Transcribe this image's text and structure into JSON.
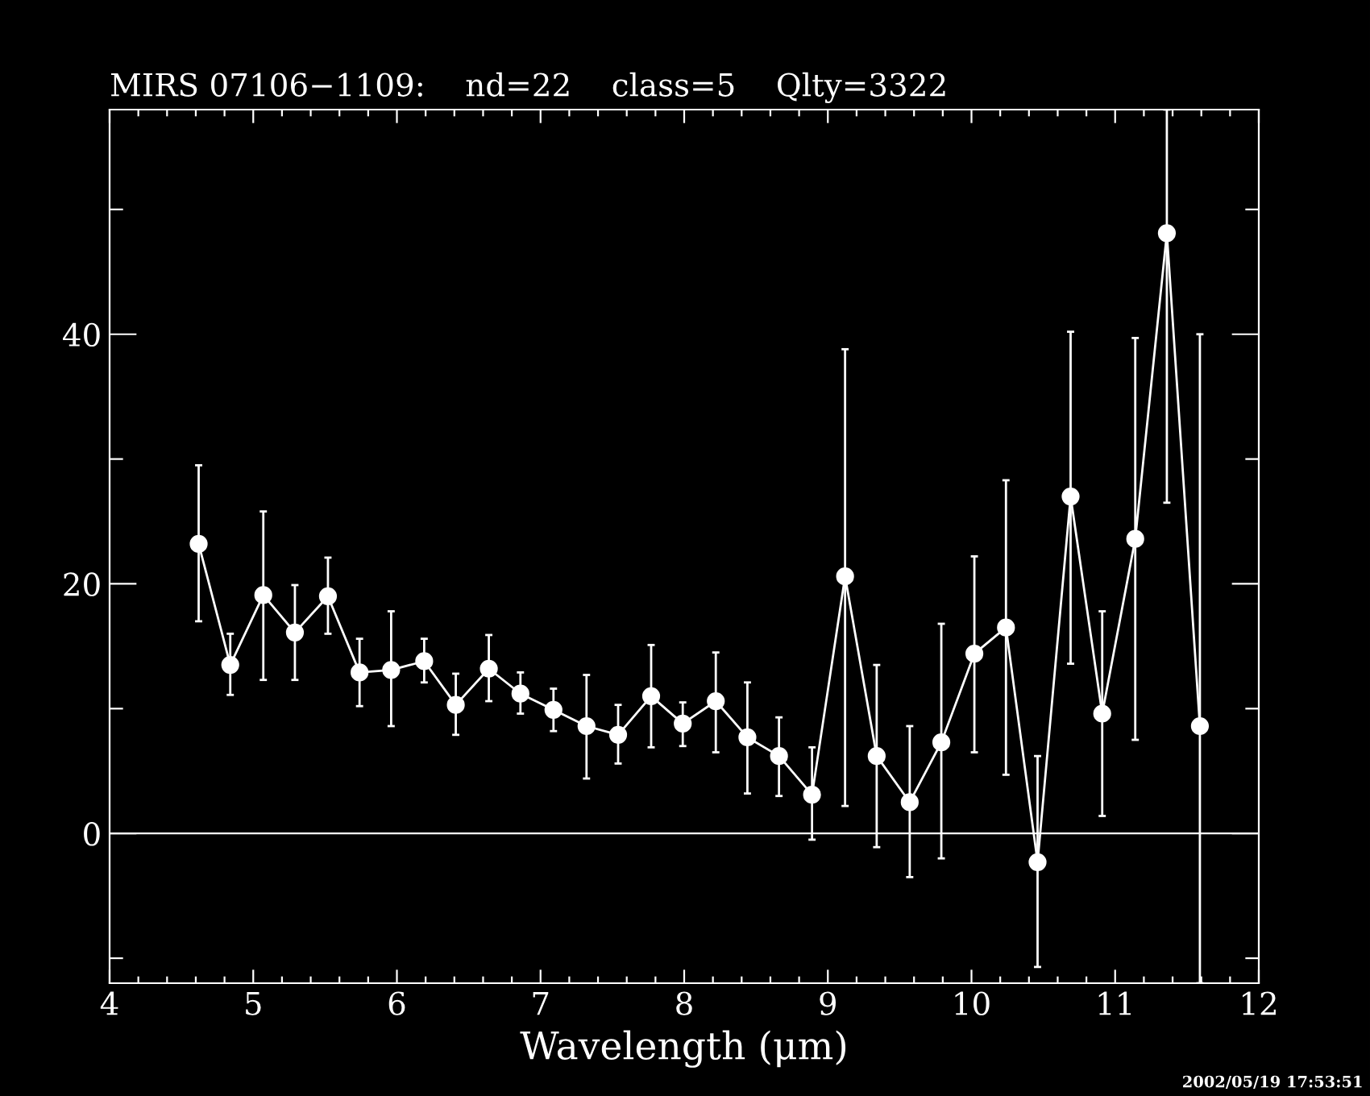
{
  "chart_data": {
    "type": "line",
    "title": "MIRS 07106−1109:    nd=22    class=5    Qlty=3322",
    "xlabel": "Wavelength (μm)",
    "x": [
      4.62,
      4.84,
      5.07,
      5.29,
      5.52,
      5.74,
      5.96,
      6.19,
      6.41,
      6.64,
      6.86,
      7.09,
      7.32,
      7.54,
      7.77,
      7.99,
      8.22,
      8.44,
      8.66,
      8.89,
      9.12,
      9.34,
      9.57,
      9.79,
      10.02,
      10.24,
      10.46,
      10.69,
      10.91,
      11.14,
      11.36,
      11.59
    ],
    "series": [
      {
        "color": "#ffffff",
        "values": [
          23.2,
          13.5,
          19.1,
          16.1,
          19.0,
          12.9,
          13.1,
          13.8,
          10.3,
          13.2,
          11.2,
          9.9,
          8.6,
          7.9,
          11.0,
          8.8,
          10.6,
          7.7,
          6.2,
          3.1,
          20.6,
          6.2,
          2.5,
          7.3,
          14.4,
          16.5,
          -2.3,
          27.0,
          9.6,
          23.6,
          48.1,
          8.6
        ],
        "errors": [
          [
            17.0,
            29.5
          ],
          [
            11.1,
            16.0
          ],
          [
            12.3,
            25.8
          ],
          [
            12.3,
            19.9
          ],
          [
            16.0,
            22.1
          ],
          [
            10.2,
            15.6
          ],
          [
            8.6,
            17.8
          ],
          [
            12.1,
            15.6
          ],
          [
            7.9,
            12.8
          ],
          [
            10.6,
            15.9
          ],
          [
            9.6,
            12.9
          ],
          [
            8.2,
            11.6
          ],
          [
            4.4,
            12.7
          ],
          [
            5.6,
            10.3
          ],
          [
            6.9,
            15.1
          ],
          [
            7.0,
            10.5
          ],
          [
            6.5,
            14.5
          ],
          [
            3.2,
            12.1
          ],
          [
            3.0,
            9.3
          ],
          [
            -0.5,
            6.9
          ],
          [
            2.2,
            38.8
          ],
          [
            -1.1,
            13.5
          ],
          [
            -3.5,
            8.6
          ],
          [
            -2.0,
            16.8
          ],
          [
            6.5,
            22.2
          ],
          [
            4.7,
            28.3
          ],
          [
            -10.7,
            6.2
          ],
          [
            13.6,
            40.2
          ],
          [
            1.4,
            17.8
          ],
          [
            7.5,
            39.7
          ],
          [
            26.5,
            58
          ],
          [
            -12,
            40.0
          ]
        ]
      }
    ],
    "marker": "circle",
    "line_style": "solid",
    "grid": false,
    "legend": false,
    "xlim": [
      4,
      12
    ],
    "xticks": [
      4,
      {
        "value": 4.2,
        "label": null
      },
      {
        "value": 4.4,
        "label": null
      },
      {
        "value": 4.6,
        "label": null
      },
      {
        "value": 4.8,
        "label": null
      },
      5,
      {
        "value": 5.2,
        "label": null
      },
      {
        "value": 5.4,
        "label": null
      },
      {
        "value": 5.6,
        "label": null
      },
      {
        "value": 5.8,
        "label": null
      },
      6,
      {
        "value": 6.2,
        "label": null
      },
      {
        "value": 6.4,
        "label": null
      },
      {
        "value": 6.6,
        "label": null
      },
      {
        "value": 6.8,
        "label": null
      },
      7,
      {
        "value": 7.2,
        "label": null
      },
      {
        "value": 7.4,
        "label": null
      },
      {
        "value": 7.6,
        "label": null
      },
      {
        "value": 7.8,
        "label": null
      },
      8,
      {
        "value": 8.2,
        "label": null
      },
      {
        "value": 8.4,
        "label": null
      },
      {
        "value": 8.6,
        "label": null
      },
      {
        "value": 8.8,
        "label": null
      },
      9,
      {
        "value": 9.2,
        "label": null
      },
      {
        "value": 9.4,
        "label": null
      },
      {
        "value": 9.6,
        "label": null
      },
      {
        "value": 9.8,
        "label": null
      },
      10,
      {
        "value": 10.2,
        "label": null
      },
      {
        "value": 10.4,
        "label": null
      },
      {
        "value": 10.6,
        "label": null
      },
      {
        "value": 10.8,
        "label": null
      },
      11,
      {
        "value": 11.2,
        "label": null
      },
      {
        "value": 11.4,
        "label": null
      },
      {
        "value": 11.6,
        "label": null
      },
      {
        "value": 11.8,
        "label": null
      },
      12
    ],
    "ylim": [
      -12,
      58
    ],
    "yticks": [
      {
        "value": -10,
        "label": null
      },
      0,
      {
        "value": 10,
        "label": null
      },
      20,
      {
        "value": 30,
        "label": null
      },
      40,
      {
        "value": 50,
        "label": null
      }
    ],
    "ref_lines": [
      {
        "axis": "y",
        "value": 0,
        "label": null,
        "color": "#ffffff",
        "line_style": "solid"
      }
    ],
    "annotations": [
      "2002/05/19 17:53:51"
    ]
  }
}
